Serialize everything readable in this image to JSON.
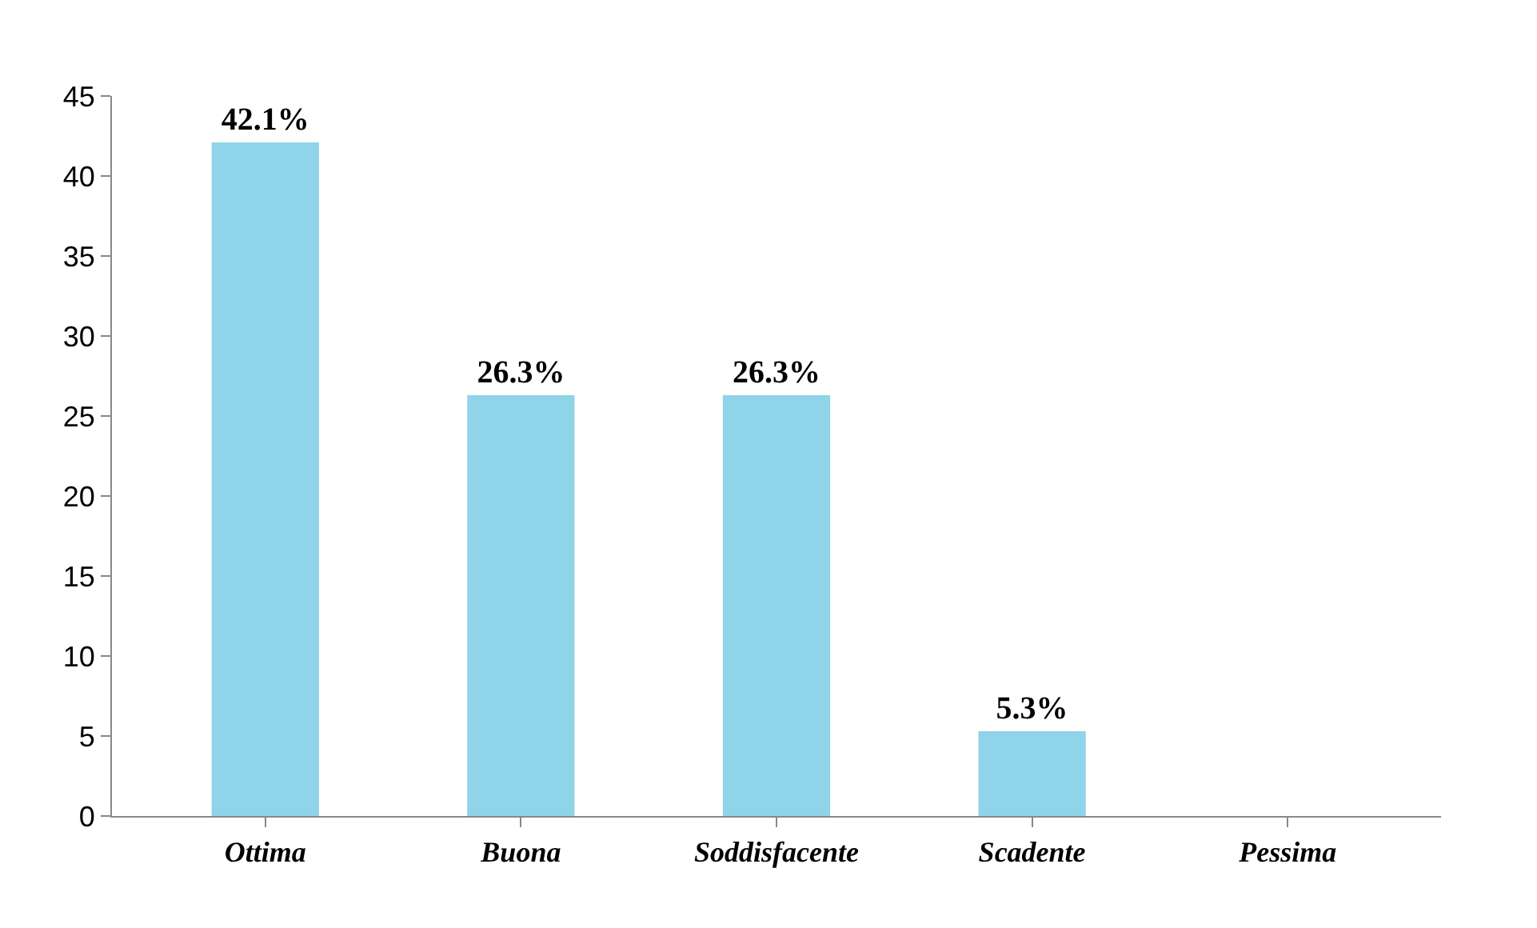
{
  "chart_data": {
    "type": "bar",
    "categories": [
      "Ottima",
      "Buona",
      "Soddisfacente",
      "Scadente",
      "Pessima"
    ],
    "values": [
      42.1,
      26.3,
      26.3,
      5.3,
      0
    ],
    "value_labels": [
      "42.1%",
      "26.3%",
      "26.3%",
      "5.3%",
      null
    ],
    "color": "#8fd4e8",
    "ylim": [
      0,
      45
    ],
    "yticks": [
      0,
      5,
      10,
      15,
      20,
      25,
      30,
      35,
      40,
      45
    ],
    "grid": false,
    "legend": false
  }
}
